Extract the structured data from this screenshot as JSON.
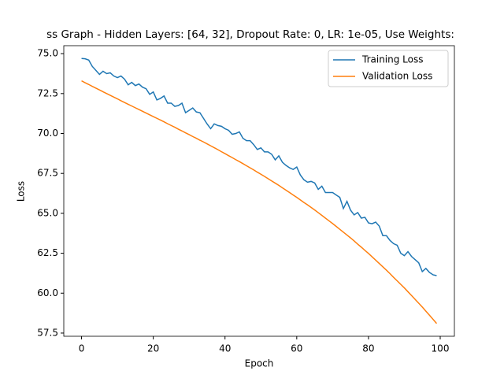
{
  "chart_data": {
    "type": "line",
    "title": "ss Graph - Hidden Layers: [64, 32], Dropout Rate: 0, LR: 1e-05, Use Weights:",
    "x_label": "Epoch",
    "y_label": "Loss",
    "x": [
      0,
      1,
      2,
      3,
      4,
      5,
      6,
      7,
      8,
      9,
      10,
      11,
      12,
      13,
      14,
      15,
      16,
      17,
      18,
      19,
      20,
      21,
      22,
      23,
      24,
      25,
      26,
      27,
      28,
      29,
      30,
      31,
      32,
      33,
      34,
      35,
      36,
      37,
      38,
      39,
      40,
      41,
      42,
      43,
      44,
      45,
      46,
      47,
      48,
      49,
      50,
      51,
      52,
      53,
      54,
      55,
      56,
      57,
      58,
      59,
      60,
      61,
      62,
      63,
      64,
      65,
      66,
      67,
      68,
      69,
      70,
      71,
      72,
      73,
      74,
      75,
      76,
      77,
      78,
      79,
      80,
      81,
      82,
      83,
      84,
      85,
      86,
      87,
      88,
      89,
      90,
      91,
      92,
      93,
      94,
      95,
      96,
      97,
      98,
      99
    ],
    "series": [
      {
        "name": "Training Loss",
        "color": "#1f77b4",
        "values": [
          74.7,
          74.68,
          74.6,
          74.2,
          73.95,
          73.7,
          73.9,
          73.75,
          73.8,
          73.6,
          73.5,
          73.6,
          73.4,
          73.05,
          73.2,
          73.0,
          73.1,
          72.9,
          72.8,
          72.45,
          72.6,
          72.1,
          72.2,
          72.35,
          71.9,
          71.9,
          71.7,
          71.75,
          71.9,
          71.3,
          71.45,
          71.6,
          71.35,
          71.3,
          70.95,
          70.6,
          70.3,
          70.6,
          70.5,
          70.45,
          70.3,
          70.2,
          69.95,
          70.0,
          70.1,
          69.7,
          69.55,
          69.55,
          69.3,
          69.0,
          69.1,
          68.85,
          68.85,
          68.7,
          68.35,
          68.6,
          68.2,
          68.0,
          67.85,
          67.75,
          67.9,
          67.4,
          67.1,
          66.95,
          67.0,
          66.9,
          66.5,
          66.7,
          66.3,
          66.3,
          66.3,
          66.15,
          66.0,
          65.3,
          65.75,
          65.2,
          64.9,
          65.05,
          64.7,
          64.75,
          64.4,
          64.35,
          64.45,
          64.2,
          63.6,
          63.6,
          63.3,
          63.1,
          63.0,
          62.5,
          62.35,
          62.6,
          62.3,
          62.1,
          61.9,
          61.35,
          61.55,
          61.3,
          61.15,
          61.1
        ]
      },
      {
        "name": "Validation Loss",
        "color": "#ff7f0e",
        "values": [
          73.3,
          73.18,
          73.07,
          72.95,
          72.84,
          72.73,
          72.61,
          72.5,
          72.39,
          72.28,
          72.17,
          72.05,
          71.94,
          71.83,
          71.72,
          71.61,
          71.5,
          71.39,
          71.28,
          71.17,
          71.06,
          70.95,
          70.84,
          70.73,
          70.61,
          70.5,
          70.39,
          70.27,
          70.16,
          70.04,
          69.93,
          69.81,
          69.7,
          69.58,
          69.47,
          69.35,
          69.23,
          69.11,
          68.99,
          68.86,
          68.74,
          68.61,
          68.49,
          68.36,
          68.24,
          68.11,
          67.98,
          67.85,
          67.72,
          67.58,
          67.45,
          67.31,
          67.17,
          67.03,
          66.89,
          66.75,
          66.6,
          66.45,
          66.3,
          66.15,
          66.0,
          65.84,
          65.68,
          65.53,
          65.37,
          65.21,
          65.04,
          64.87,
          64.7,
          64.53,
          64.36,
          64.18,
          64.0,
          63.82,
          63.64,
          63.46,
          63.27,
          63.07,
          62.88,
          62.68,
          62.49,
          62.28,
          62.07,
          61.86,
          61.65,
          61.44,
          61.22,
          60.99,
          60.77,
          60.55,
          60.33,
          60.09,
          59.85,
          59.61,
          59.37,
          59.13,
          58.87,
          58.62,
          58.36,
          58.1
        ]
      }
    ],
    "xlim": [
      -4.95,
      103.95
    ],
    "ylim": [
      57.3,
      75.5
    ],
    "xticks": [
      0,
      20,
      40,
      60,
      80,
      100
    ],
    "yticks": [
      57.5,
      {
        "value": 60,
        "label": "60.0"
      },
      62.5,
      {
        "value": 65,
        "label": "65.0"
      },
      67.5,
      {
        "value": 70,
        "label": "70.0"
      },
      72.5,
      {
        "value": 75,
        "label": "75.0"
      }
    ],
    "grid": false,
    "legend": "upper right"
  }
}
